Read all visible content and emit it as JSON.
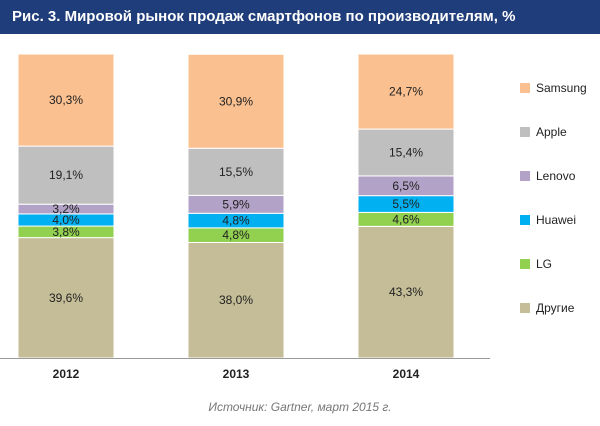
{
  "header": {
    "title": "Рис. 3. Мировой рынок продаж смартфонов по производителям, %"
  },
  "source": "Источник: Gartner, март 2015 г.",
  "chart_data": {
    "type": "bar",
    "stacked": true,
    "categories": [
      "2012",
      "2013",
      "2014"
    ],
    "ylim": [
      0,
      100
    ],
    "grid": false,
    "legend_position": "right",
    "series": [
      {
        "name": "Другие",
        "color": "#c4bd97",
        "values": [
          39.6,
          38.0,
          43.3
        ],
        "labels": [
          "39,6%",
          "38,0%",
          "43,3%"
        ]
      },
      {
        "name": "LG",
        "color": "#92d050",
        "values": [
          3.8,
          4.8,
          4.6
        ],
        "labels": [
          "3,8%",
          "4,8%",
          "4,6%"
        ]
      },
      {
        "name": "Huawei",
        "color": "#00b0f0",
        "values": [
          4.0,
          4.8,
          5.5
        ],
        "labels": [
          "4,0%",
          "4,8%",
          "5,5%"
        ]
      },
      {
        "name": "Lenovo",
        "color": "#b3a2c7",
        "values": [
          3.2,
          5.9,
          6.5
        ],
        "labels": [
          "3,2%",
          "5,9%",
          "6,5%"
        ]
      },
      {
        "name": "Apple",
        "color": "#bfbfbf",
        "values": [
          19.1,
          15.5,
          15.4
        ],
        "labels": [
          "19,1%",
          "15,5%",
          "15,4%"
        ]
      },
      {
        "name": "Samsung",
        "color": "#fac090",
        "values": [
          30.3,
          30.9,
          24.7
        ],
        "labels": [
          "30,3%",
          "30,9%",
          "24,7%"
        ]
      }
    ]
  }
}
